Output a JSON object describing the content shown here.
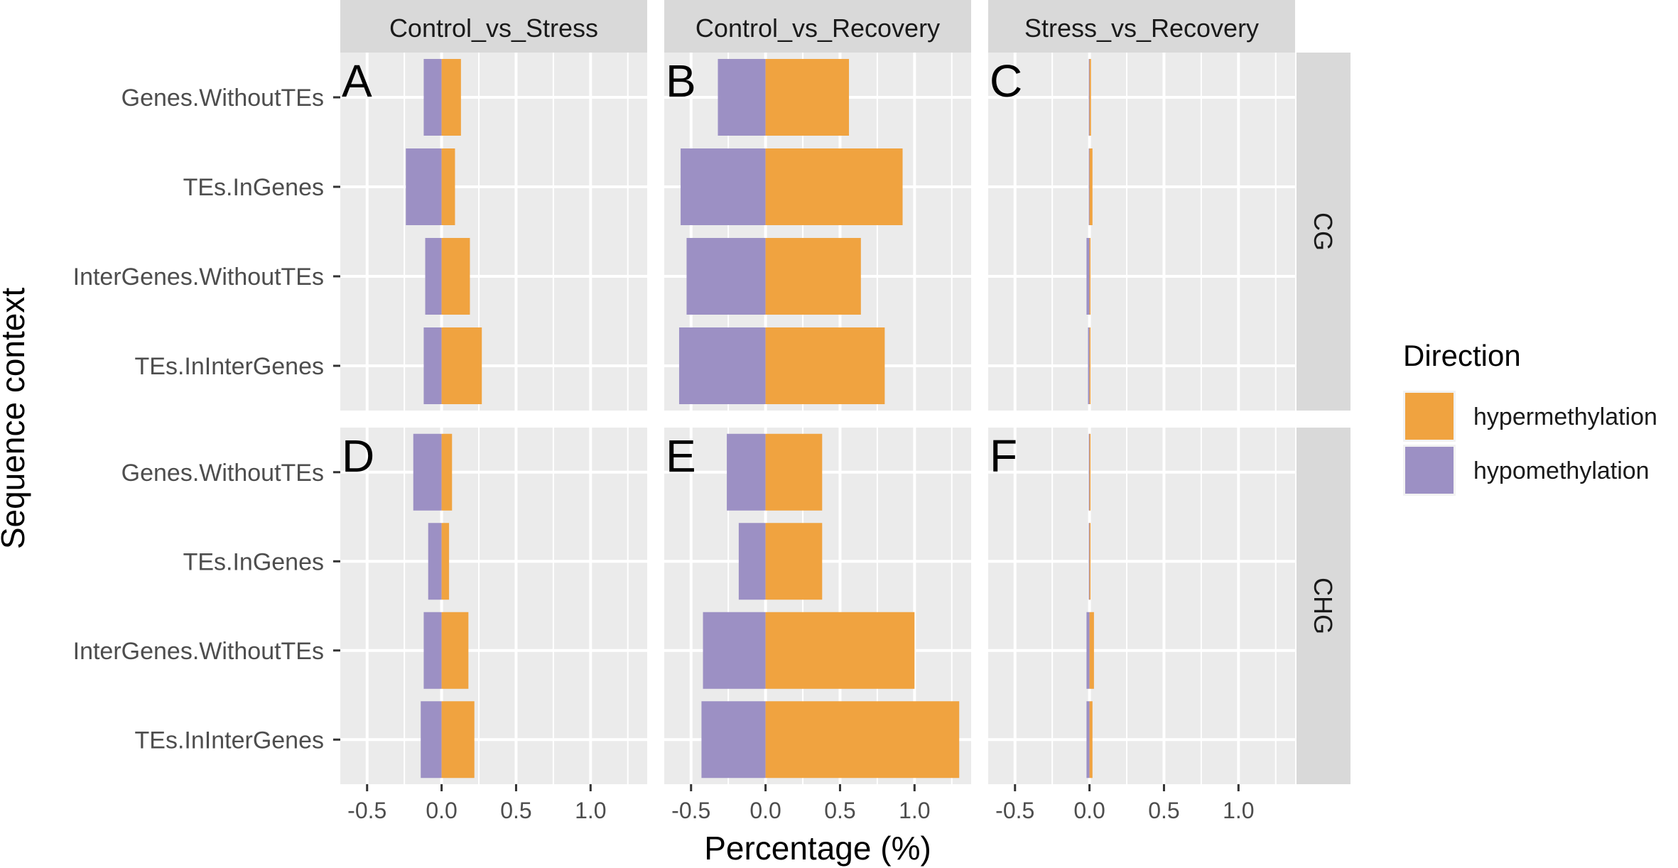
{
  "chart_data": {
    "type": "bar",
    "orientation": "horizontal",
    "xlabel": "Percentage (%)",
    "ylabel": "Sequence context",
    "xlim": [
      -0.68,
      1.38
    ],
    "xticks": [
      -0.5,
      0.0,
      0.5,
      1.0
    ],
    "xtick_labels": [
      "-0.5",
      "0.0",
      "0.5",
      "1.0"
    ],
    "categories": [
      "Genes.WithoutTEs",
      "TEs.InGenes",
      "InterGenes.WithoutTEs",
      "TEs.InInterGenes"
    ],
    "column_facets": [
      "Control_vs_Stress",
      "Control_vs_Recovery",
      "Stress_vs_Recovery"
    ],
    "row_facets": [
      "CG",
      "CHG"
    ],
    "legend": {
      "title": "Direction",
      "position": "right",
      "entries": [
        {
          "label": "hypermethylation",
          "color": "#F0A340"
        },
        {
          "label": "hypomethylation",
          "color": "#9C90C4"
        }
      ]
    },
    "panels": [
      {
        "letter": "A",
        "row": 0,
        "col": 0,
        "hyper": [
          0.13,
          0.09,
          0.19,
          0.27
        ],
        "hypo": [
          -0.12,
          -0.24,
          -0.11,
          -0.12
        ]
      },
      {
        "letter": "B",
        "row": 0,
        "col": 1,
        "hyper": [
          0.56,
          0.92,
          0.64,
          0.8
        ],
        "hypo": [
          -0.32,
          -0.57,
          -0.53,
          -0.58
        ]
      },
      {
        "letter": "C",
        "row": 0,
        "col": 2,
        "hyper": [
          0.01,
          0.02,
          0.005,
          0.005
        ],
        "hypo": [
          -0.005,
          -0.005,
          -0.02,
          -0.01
        ]
      },
      {
        "letter": "D",
        "row": 1,
        "col": 0,
        "hyper": [
          0.07,
          0.05,
          0.18,
          0.22
        ],
        "hypo": [
          -0.19,
          -0.09,
          -0.12,
          -0.14
        ]
      },
      {
        "letter": "E",
        "row": 1,
        "col": 1,
        "hyper": [
          0.38,
          0.38,
          1.0,
          1.3
        ],
        "hypo": [
          -0.26,
          -0.18,
          -0.42,
          -0.43
        ]
      },
      {
        "letter": "F",
        "row": 1,
        "col": 2,
        "hyper": [
          0.005,
          0.005,
          0.03,
          0.02
        ],
        "hypo": [
          -0.005,
          -0.005,
          -0.02,
          -0.02
        ]
      }
    ]
  }
}
